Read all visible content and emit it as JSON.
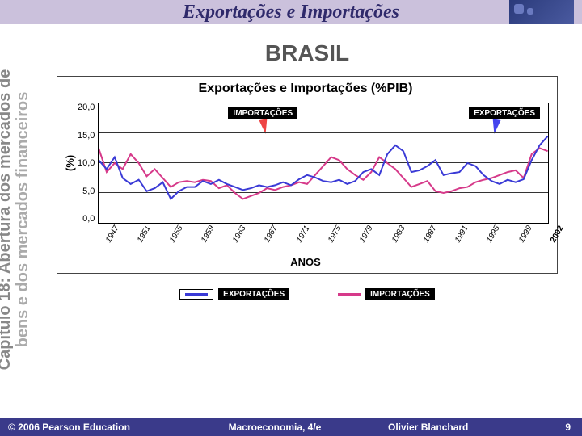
{
  "slide": {
    "title": "Exportações e Importações",
    "subtitle": "BRASIL",
    "sidebar_line1": "Capítulo 18: Abertura dos mercados de",
    "sidebar_line2": "bens e dos mercados financeiros"
  },
  "chart": {
    "type": "line",
    "title": "Exportações e Importações (%PIB)",
    "ylabel": "(%)",
    "xlabel": "ANOS",
    "ylim": [
      0,
      20
    ],
    "ytick_step": 5,
    "yticks": [
      "20,0",
      "15,0",
      "10,0",
      "5,0",
      "0,0"
    ],
    "xticks": [
      "1947",
      "1951",
      "1955",
      "1959",
      "1963",
      "1967",
      "1971",
      "1975",
      "1979",
      "1983",
      "1987",
      "1991",
      "1995",
      "1999"
    ],
    "x_extra_label": "2002",
    "grid_color": "#333333",
    "background_color": "#ffffff",
    "series": {
      "exportacoes": {
        "label": "EXPORTAÇÕES",
        "color": "#3a3ad6",
        "line_width": 2,
        "values": [
          10.5,
          9.0,
          11.0,
          7.5,
          6.5,
          7.2,
          5.3,
          5.8,
          6.8,
          4.0,
          5.3,
          6.0,
          6.0,
          7.0,
          6.5,
          7.2,
          6.5,
          6.0,
          5.5,
          5.8,
          6.3,
          6.0,
          6.3,
          6.8,
          6.3,
          7.3,
          8.0,
          7.6,
          7.0,
          6.8,
          7.2,
          6.5,
          7.0,
          8.5,
          9.0,
          8.0,
          11.5,
          13.0,
          12.0,
          8.5,
          8.8,
          9.5,
          10.5,
          8.0,
          8.3,
          8.5,
          10.0,
          9.5,
          8.0,
          7.0,
          6.5,
          7.2,
          6.8,
          7.3,
          10.5,
          13.0,
          14.5
        ]
      },
      "importacoes": {
        "label": "IMPORTAÇÕES",
        "color": "#d63a8a",
        "line_width": 2,
        "values": [
          12.5,
          8.5,
          10.0,
          9.0,
          11.5,
          10.0,
          7.8,
          9.0,
          7.5,
          6.0,
          6.8,
          7.0,
          6.8,
          7.2,
          7.0,
          5.8,
          6.3,
          5.0,
          4.0,
          4.5,
          5.0,
          5.8,
          5.5,
          6.0,
          6.3,
          6.8,
          6.5,
          8.0,
          9.5,
          11.0,
          10.5,
          9.0,
          8.0,
          7.2,
          8.5,
          11.0,
          10.0,
          9.0,
          7.5,
          6.0,
          6.5,
          7.0,
          5.3,
          5.0,
          5.3,
          5.8,
          6.0,
          6.8,
          7.2,
          7.5,
          8.0,
          8.5,
          8.8,
          7.5,
          11.5,
          12.5,
          12.0
        ]
      }
    },
    "overlay_labels": {
      "importacoes": "IMPORTAÇÕES",
      "exportacoes": "EXPORTAÇÕES"
    }
  },
  "legend": {
    "exportacoes": "EXPORTAÇÕES",
    "importacoes": "IMPORTAÇÕES"
  },
  "footer": {
    "copyright": "© 2006 Pearson Education",
    "book": "Macroeconomia, 4/e",
    "author": "Olivier Blanchard",
    "page": "9"
  },
  "colors": {
    "header_band": "#cbc1dc",
    "title_color": "#2f2a6b",
    "footer_bg": "#3a3a8a"
  }
}
